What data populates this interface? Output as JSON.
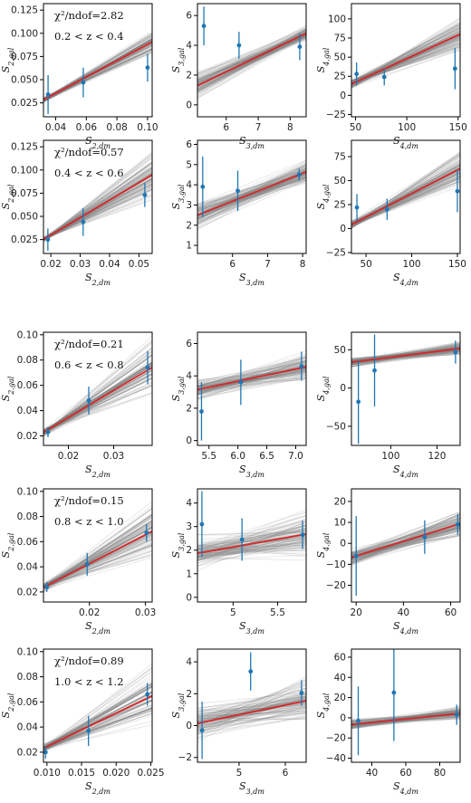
{
  "colors": {
    "fit": "#d62728",
    "samples": "#808080",
    "points": "#1f77b4",
    "frame": "#000000"
  },
  "chart_data": [
    {
      "type": "scatter",
      "row": 0,
      "col": 0,
      "xlabel": "S_{2,dm}",
      "ylabel": "S_{2,gal}",
      "annotation_chi": "χ²/ndof=2.82",
      "annotation_z": "0.2 < z < 0.4",
      "xlim": [
        0.032,
        0.103
      ],
      "ylim": [
        0.01,
        0.132
      ],
      "xticks": [
        0.04,
        0.06,
        0.08,
        0.1
      ],
      "xtick_labels": [
        "0.04",
        "0.06",
        "0.08",
        "0.10"
      ],
      "yticks": [
        0.025,
        0.05,
        0.075,
        0.1,
        0.125
      ],
      "ytick_labels": [
        "0.025",
        "0.050",
        "0.075",
        "0.100",
        "0.125"
      ],
      "points": [
        {
          "x": 0.035,
          "y": 0.034,
          "err": 0.021
        },
        {
          "x": 0.058,
          "y": 0.047,
          "err": 0.016
        },
        {
          "x": 0.1,
          "y": 0.063,
          "err": 0.015
        }
      ],
      "fit": [
        [
          0.035,
          0.031
        ],
        [
          0.1,
          0.088
        ]
      ],
      "spread": [
        0.0035,
        0.0147
      ]
    },
    {
      "type": "scatter",
      "row": 0,
      "col": 1,
      "xlabel": "S_{3,dm}",
      "ylabel": "S_{3,gal}",
      "xlim": [
        5.1,
        8.5
      ],
      "ylim": [
        -0.8,
        6.8
      ],
      "xticks": [
        6,
        7,
        8
      ],
      "xtick_labels": [
        "6",
        "7",
        "8"
      ],
      "yticks": [
        0,
        2,
        4,
        6
      ],
      "ytick_labels": [
        "0",
        "2",
        "4",
        "6"
      ],
      "points": [
        {
          "x": 5.3,
          "y": 5.3,
          "err": 1.3
        },
        {
          "x": 6.4,
          "y": 4.0,
          "err": 0.9
        },
        {
          "x": 8.3,
          "y": 3.9,
          "err": 0.9
        }
      ],
      "fit": [
        [
          5.3,
          1.5
        ],
        [
          8.3,
          4.6
        ]
      ],
      "spread": [
        1.3,
        0.6
      ]
    },
    {
      "type": "scatter",
      "row": 0,
      "col": 2,
      "xlabel": "S_{4,dm}",
      "ylabel": "S_{4,gal}",
      "xlim": [
        46,
        152
      ],
      "ylim": [
        -28,
        120
      ],
      "xticks": [
        50,
        100,
        150
      ],
      "xtick_labels": [
        "50",
        "100",
        "150"
      ],
      "yticks": [
        -25,
        0,
        25,
        50,
        75,
        100
      ],
      "ytick_labels": [
        "−25",
        "0",
        "25",
        "50",
        "75",
        "100"
      ],
      "points": [
        {
          "x": 51,
          "y": 28,
          "err": 15
        },
        {
          "x": 78,
          "y": 24,
          "err": 11
        },
        {
          "x": 147,
          "y": 35,
          "err": 27
        }
      ],
      "fit": [
        [
          51,
          18
        ],
        [
          147,
          77
        ]
      ],
      "spread": [
        8,
        32
      ]
    },
    {
      "type": "scatter",
      "row": 1,
      "col": 0,
      "xlabel": "S_{2,dm}",
      "ylabel": "S_{2,gal}",
      "annotation_chi": "χ²/ndof=0.57",
      "annotation_z": "0.4 < z < 0.6",
      "xlim": [
        0.0175,
        0.0545
      ],
      "ylim": [
        0.01,
        0.132
      ],
      "xticks": [
        0.02,
        0.03,
        0.04,
        0.05
      ],
      "xtick_labels": [
        "0.02",
        "0.03",
        "0.04",
        "0.05"
      ],
      "yticks": [
        0.025,
        0.05,
        0.075,
        0.1,
        0.125
      ],
      "ytick_labels": [
        "0.025",
        "0.050",
        "0.075",
        "0.100",
        "0.125"
      ],
      "points": [
        {
          "x": 0.019,
          "y": 0.025,
          "err": 0.012
        },
        {
          "x": 0.031,
          "y": 0.044,
          "err": 0.015
        },
        {
          "x": 0.052,
          "y": 0.073,
          "err": 0.013
        }
      ],
      "fit": [
        [
          0.019,
          0.028
        ],
        [
          0.052,
          0.09
        ]
      ],
      "spread": [
        0.003,
        0.032
      ]
    },
    {
      "type": "scatter",
      "row": 1,
      "col": 1,
      "xlabel": "S_{3,dm}",
      "ylabel": "S_{3,gal}",
      "xlim": [
        5.0,
        8.1
      ],
      "ylim": [
        0.6,
        6.2
      ],
      "xticks": [
        6,
        7,
        8
      ],
      "xtick_labels": [
        "6",
        "7",
        "8"
      ],
      "yticks": [
        1,
        2,
        3,
        4,
        5,
        6
      ],
      "ytick_labels": [
        "1",
        "2",
        "3",
        "4",
        "5",
        "6"
      ],
      "points": [
        {
          "x": 5.15,
          "y": 3.9,
          "err": 1.5
        },
        {
          "x": 6.15,
          "y": 3.7,
          "err": 1.0
        },
        {
          "x": 7.9,
          "y": 4.5,
          "err": 0.3
        }
      ],
      "fit": [
        [
          5.15,
          2.6
        ],
        [
          7.9,
          4.5
        ]
      ],
      "spread": [
        0.8,
        0.7
      ]
    },
    {
      "type": "scatter",
      "row": 1,
      "col": 2,
      "xlabel": "S_{4,dm}",
      "ylabel": "S_{4,gal}",
      "xlim": [
        34,
        153
      ],
      "ylim": [
        -26,
        92
      ],
      "xticks": [
        50,
        100,
        150
      ],
      "xtick_labels": [
        "50",
        "100",
        "150"
      ],
      "yticks": [
        -25,
        0,
        25,
        50,
        75
      ],
      "ytick_labels": [
        "−25",
        "0",
        "25",
        "50",
        "75"
      ],
      "points": [
        {
          "x": 40,
          "y": 22,
          "err": 14
        },
        {
          "x": 73,
          "y": 20,
          "err": 11
        },
        {
          "x": 150,
          "y": 39,
          "err": 22
        }
      ],
      "fit": [
        [
          40,
          7
        ],
        [
          150,
          61
        ]
      ],
      "spread": [
        6,
        22
      ]
    },
    {
      "type": "scatter",
      "row": 2,
      "col": 0,
      "xlabel": "S_{2,dm}",
      "ylabel": "S_{2,gal}",
      "annotation_chi": "χ²/ndof=0.21",
      "annotation_z": "0.6 < z < 0.8",
      "xlim": [
        0.0145,
        0.0385
      ],
      "ylim": [
        0.0125,
        0.102
      ],
      "xticks": [
        0.02,
        0.03
      ],
      "xtick_labels": [
        "0.02",
        "0.03"
      ],
      "yticks": [
        0.02,
        0.04,
        0.06,
        0.08,
        0.1
      ],
      "ytick_labels": [
        "0.02",
        "0.04",
        "0.06",
        "0.08",
        "0.10"
      ],
      "points": [
        {
          "x": 0.0155,
          "y": 0.023,
          "err": 0.004
        },
        {
          "x": 0.0245,
          "y": 0.048,
          "err": 0.011
        },
        {
          "x": 0.0375,
          "y": 0.074,
          "err": 0.013
        }
      ],
      "fit": [
        [
          0.0155,
          0.025
        ],
        [
          0.0375,
          0.072
        ]
      ],
      "spread": [
        0.004,
        0.026
      ]
    },
    {
      "type": "scatter",
      "row": 2,
      "col": 1,
      "xlabel": "S_{3,dm}",
      "ylabel": "S_{3,gal}",
      "xlim": [
        5.3,
        7.18
      ],
      "ylim": [
        -0.3,
        6.7
      ],
      "xticks": [
        5.5,
        6.0,
        6.5,
        7.0
      ],
      "xtick_labels": [
        "5.5",
        "6.0",
        "6.5",
        "7.0"
      ],
      "yticks": [
        0,
        2,
        4,
        6
      ],
      "ytick_labels": [
        "0",
        "2",
        "4",
        "6"
      ],
      "points": [
        {
          "x": 5.37,
          "y": 1.8,
          "err": 1.8
        },
        {
          "x": 6.05,
          "y": 3.6,
          "err": 1.4
        },
        {
          "x": 7.1,
          "y": 4.6,
          "err": 0.9
        }
      ],
      "fit": [
        [
          5.37,
          3.2
        ],
        [
          7.1,
          4.5
        ]
      ],
      "spread": [
        0.9,
        1.1
      ]
    },
    {
      "type": "scatter",
      "row": 2,
      "col": 2,
      "xlabel": "S_{4,dm}",
      "ylabel": "S_{4,gal}",
      "xlim": [
        83,
        130
      ],
      "ylim": [
        -75,
        73
      ],
      "xticks": [
        100,
        120
      ],
      "xtick_labels": [
        "100",
        "120"
      ],
      "yticks": [
        -50,
        0,
        50
      ],
      "ytick_labels": [
        "−50",
        "0",
        "50"
      ],
      "points": [
        {
          "x": 86,
          "y": -18,
          "err": 55
        },
        {
          "x": 93,
          "y": 23,
          "err": 47
        },
        {
          "x": 128,
          "y": 47,
          "err": 15
        }
      ],
      "fit": [
        [
          86,
          35
        ],
        [
          128,
          51
        ]
      ],
      "spread": [
        8,
        10
      ]
    },
    {
      "type": "scatter",
      "row": 3,
      "col": 0,
      "xlabel": "S_{2,dm}",
      "ylabel": "S_{2,gal}",
      "annotation_chi": "χ²/ndof=0.15",
      "annotation_z": "0.8 < z < 1.0",
      "xlim": [
        0.0118,
        0.0312
      ],
      "ylim": [
        0.012,
        0.102
      ],
      "xticks": [
        0.02,
        0.03
      ],
      "xtick_labels": [
        "0.02",
        "0.03"
      ],
      "yticks": [
        0.02,
        0.04,
        0.06,
        0.08,
        0.1
      ],
      "ytick_labels": [
        "0.02",
        "0.04",
        "0.06",
        "0.08",
        "0.10"
      ],
      "points": [
        {
          "x": 0.0124,
          "y": 0.024,
          "err": 0.004
        },
        {
          "x": 0.0196,
          "y": 0.042,
          "err": 0.009
        },
        {
          "x": 0.0302,
          "y": 0.067,
          "err": 0.007
        }
      ],
      "fit": [
        [
          0.0124,
          0.025
        ],
        [
          0.0302,
          0.066
        ]
      ],
      "spread": [
        0.004,
        0.028
      ]
    },
    {
      "type": "scatter",
      "row": 3,
      "col": 1,
      "xlabel": "S_{3,dm}",
      "ylabel": "S_{3,gal}",
      "xlim": [
        4.6,
        5.82
      ],
      "ylim": [
        -0.2,
        4.6
      ],
      "xticks": [
        5,
        5.5
      ],
      "xtick_labels": [
        "5",
        "5.5"
      ],
      "yticks": [
        0,
        1,
        2,
        3,
        4
      ],
      "ytick_labels": [
        "0",
        "1",
        "2",
        "3",
        "4"
      ],
      "points": [
        {
          "x": 4.65,
          "y": 3.1,
          "err": 1.4
        },
        {
          "x": 5.1,
          "y": 2.45,
          "err": 0.9
        },
        {
          "x": 5.78,
          "y": 2.65,
          "err": 0.6
        }
      ],
      "fit": [
        [
          4.65,
          1.9
        ],
        [
          5.78,
          2.65
        ]
      ],
      "spread": [
        0.8,
        1.3
      ]
    },
    {
      "type": "scatter",
      "row": 3,
      "col": 2,
      "xlabel": "S_{4,dm}",
      "ylabel": "S_{4,gal}",
      "xlim": [
        18,
        64
      ],
      "ylim": [
        -28,
        26
      ],
      "xticks": [
        20,
        40,
        60
      ],
      "xtick_labels": [
        "20",
        "40",
        "60"
      ],
      "yticks": [
        -20,
        -10,
        0,
        10,
        20
      ],
      "ytick_labels": [
        "−20",
        "−10",
        "0",
        "10",
        "20"
      ],
      "points": [
        {
          "x": 20,
          "y": -6,
          "err": 19
        },
        {
          "x": 49,
          "y": 3,
          "err": 8
        },
        {
          "x": 63,
          "y": 9,
          "err": 5
        }
      ],
      "fit": [
        [
          20,
          -6
        ],
        [
          63,
          9
        ]
      ],
      "spread": [
        5,
        8
      ]
    },
    {
      "type": "scatter",
      "row": 4,
      "col": 0,
      "xlabel": "S_{2,dm}",
      "ylabel": "S_{2,gal}",
      "annotation_chi": "χ²/ndof=0.89",
      "annotation_z": "1.0 < z < 1.2",
      "xlim": [
        0.0095,
        0.0252
      ],
      "ylim": [
        0.012,
        0.102
      ],
      "xticks": [
        0.01,
        0.015,
        0.02,
        0.025
      ],
      "xtick_labels": [
        "0.010",
        "0.015",
        "0.020",
        "0.025"
      ],
      "yticks": [
        0.02,
        0.04,
        0.06,
        0.08,
        0.1
      ],
      "ytick_labels": [
        "0.02",
        "0.04",
        "0.06",
        "0.08",
        "0.10"
      ],
      "points": [
        {
          "x": 0.0098,
          "y": 0.02,
          "err": 0.005
        },
        {
          "x": 0.016,
          "y": 0.037,
          "err": 0.012
        },
        {
          "x": 0.0245,
          "y": 0.066,
          "err": 0.009
        }
      ],
      "fit": [
        [
          0.0098,
          0.024
        ],
        [
          0.0245,
          0.063
        ]
      ],
      "spread": [
        0.004,
        0.028
      ]
    },
    {
      "type": "scatter",
      "row": 4,
      "col": 1,
      "xlabel": "S_{3,dm}",
      "ylabel": "S_{3,gal}",
      "xlim": [
        4.1,
        6.45
      ],
      "ylim": [
        -2.3,
        4.8
      ],
      "xticks": [
        5,
        6
      ],
      "xtick_labels": [
        "5",
        "6"
      ],
      "yticks": [
        -2,
        0,
        2,
        4
      ],
      "ytick_labels": [
        "−2",
        "0",
        "2",
        "4"
      ],
      "points": [
        {
          "x": 4.2,
          "y": -0.3,
          "err": 1.8
        },
        {
          "x": 5.25,
          "y": 3.4,
          "err": 1.2
        },
        {
          "x": 6.35,
          "y": 2.05,
          "err": 0.8
        }
      ],
      "fit": [
        [
          4.2,
          0.2
        ],
        [
          6.35,
          1.5
        ]
      ],
      "spread": [
        1.3,
        1.6
      ]
    },
    {
      "type": "scatter",
      "row": 4,
      "col": 2,
      "xlabel": "S_{4,dm}",
      "ylabel": "S_{4,gal}",
      "xlim": [
        28,
        92
      ],
      "ylim": [
        -44,
        68
      ],
      "xticks": [
        40,
        60,
        80
      ],
      "xtick_labels": [
        "40",
        "60",
        "80"
      ],
      "yticks": [
        -40,
        -20,
        0,
        20,
        40,
        60
      ],
      "ytick_labels": [
        "−40",
        "−20",
        "0",
        "20",
        "40",
        "60"
      ],
      "points": [
        {
          "x": 32,
          "y": -3,
          "err": 34
        },
        {
          "x": 53,
          "y": 25,
          "err": 48
        },
        {
          "x": 90,
          "y": 3,
          "err": 10
        }
      ],
      "fit": [
        [
          32,
          -6
        ],
        [
          90,
          4
        ]
      ],
      "spread": [
        6,
        8
      ]
    }
  ]
}
